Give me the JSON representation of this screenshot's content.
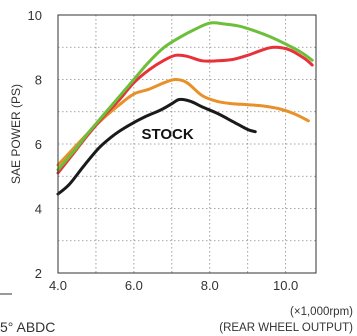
{
  "chart_data": {
    "type": "line",
    "ylabel": "SAE POWER (PS)",
    "xlabel_unit": "(×1,000rpm)",
    "xlabel_note": "(REAR WHEEL OUTPUT)",
    "xlim": [
      4.0,
      10.8
    ],
    "ylim": [
      2,
      10
    ],
    "x_ticks": [
      "4.0",
      "6.0",
      "8.0",
      "10.0"
    ],
    "x_tick_values": [
      4,
      6,
      8,
      10
    ],
    "y_ticks": [
      "2",
      "4",
      "6",
      "8",
      "10"
    ],
    "y_tick_values": [
      2,
      4,
      6,
      8,
      10
    ],
    "grid": true,
    "grid_style": "dotted",
    "series": [
      {
        "name": "STOCK",
        "color": "#1a1a1a",
        "x": [
          4.0,
          4.3,
          4.7,
          5.1,
          5.5,
          5.9,
          6.3,
          6.7,
          7.0,
          7.2,
          7.5,
          7.8,
          8.2,
          8.6,
          9.0,
          9.2
        ],
        "y": [
          4.45,
          4.75,
          5.35,
          5.9,
          6.3,
          6.6,
          6.85,
          7.05,
          7.25,
          7.38,
          7.32,
          7.15,
          6.95,
          6.7,
          6.45,
          6.38
        ]
      },
      {
        "color": "#e8902a",
        "x": [
          4.0,
          4.4,
          4.8,
          5.2,
          5.6,
          6.0,
          6.4,
          6.8,
          7.1,
          7.4,
          7.8,
          8.2,
          8.6,
          9.0,
          9.4,
          9.8,
          10.2,
          10.6
        ],
        "y": [
          5.35,
          5.85,
          6.35,
          6.8,
          7.2,
          7.55,
          7.7,
          7.9,
          8.0,
          7.9,
          7.5,
          7.32,
          7.25,
          7.22,
          7.18,
          7.1,
          6.95,
          6.72
        ]
      },
      {
        "color": "#e8323a",
        "x": [
          4.0,
          4.4,
          4.8,
          5.2,
          5.6,
          6.0,
          6.4,
          6.8,
          7.1,
          7.4,
          7.8,
          8.2,
          8.6,
          9.0,
          9.4,
          9.7,
          10.1,
          10.5,
          10.7
        ],
        "y": [
          5.1,
          5.7,
          6.3,
          6.85,
          7.35,
          7.9,
          8.3,
          8.6,
          8.75,
          8.72,
          8.58,
          8.58,
          8.62,
          8.75,
          8.92,
          9.0,
          8.92,
          8.65,
          8.45
        ]
      },
      {
        "color": "#6cbf3a",
        "x": [
          4.0,
          4.4,
          4.8,
          5.2,
          5.6,
          6.0,
          6.4,
          6.8,
          7.2,
          7.6,
          8.0,
          8.4,
          8.8,
          9.2,
          9.6,
          10.0,
          10.4,
          10.7
        ],
        "y": [
          5.2,
          5.75,
          6.35,
          6.9,
          7.45,
          8.0,
          8.55,
          9.0,
          9.3,
          9.55,
          9.75,
          9.72,
          9.65,
          9.5,
          9.32,
          9.1,
          8.85,
          8.6
        ]
      }
    ],
    "annotations": [
      {
        "text": "STOCK",
        "x": 6.2,
        "y": 6.15
      }
    ],
    "corner_text": "5° ABDC"
  }
}
